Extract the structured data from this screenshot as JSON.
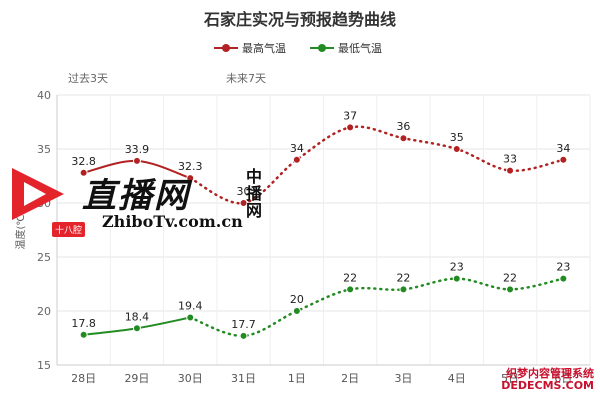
{
  "chart_data": {
    "type": "line",
    "title": "石家庄实况与预报趋势曲线",
    "ylabel": "温度(℃)",
    "categories": [
      "28日",
      "29日",
      "30日",
      "31日",
      "1日",
      "2日",
      "3日",
      "4日",
      "5日",
      "6日"
    ],
    "ylim": [
      15,
      40
    ],
    "yticks": [
      15,
      20,
      25,
      30,
      35,
      40
    ],
    "periods": {
      "past": "过去3天",
      "future": "未来7天"
    },
    "observed_count": 4,
    "series": [
      {
        "name": "最高气温",
        "color": "#b22222",
        "values": [
          32.8,
          33.9,
          32.3,
          30,
          34,
          37,
          36,
          35,
          33,
          34
        ],
        "labels": [
          "32.8",
          "33.9",
          "32.3",
          "30",
          "34",
          "37",
          "36",
          "35",
          "33",
          "34"
        ]
      },
      {
        "name": "最低气温",
        "color": "#228b22",
        "values": [
          17.8,
          18.4,
          19.4,
          17.7,
          20,
          22,
          22,
          23,
          22,
          23
        ],
        "labels": [
          "17.8",
          "18.4",
          "19.4",
          "17.7",
          "20",
          "22",
          "22",
          "23",
          "22",
          "23"
        ]
      }
    ],
    "grid": true,
    "legend_position": "top"
  },
  "overlay": {
    "logo_text": "直播网",
    "logo_url": "ZhiboTv.com.cn",
    "logo_side": "中播网",
    "logo_badge": "十八腔",
    "watermark": "织梦内容管理系统 DEDECMS.COM"
  }
}
